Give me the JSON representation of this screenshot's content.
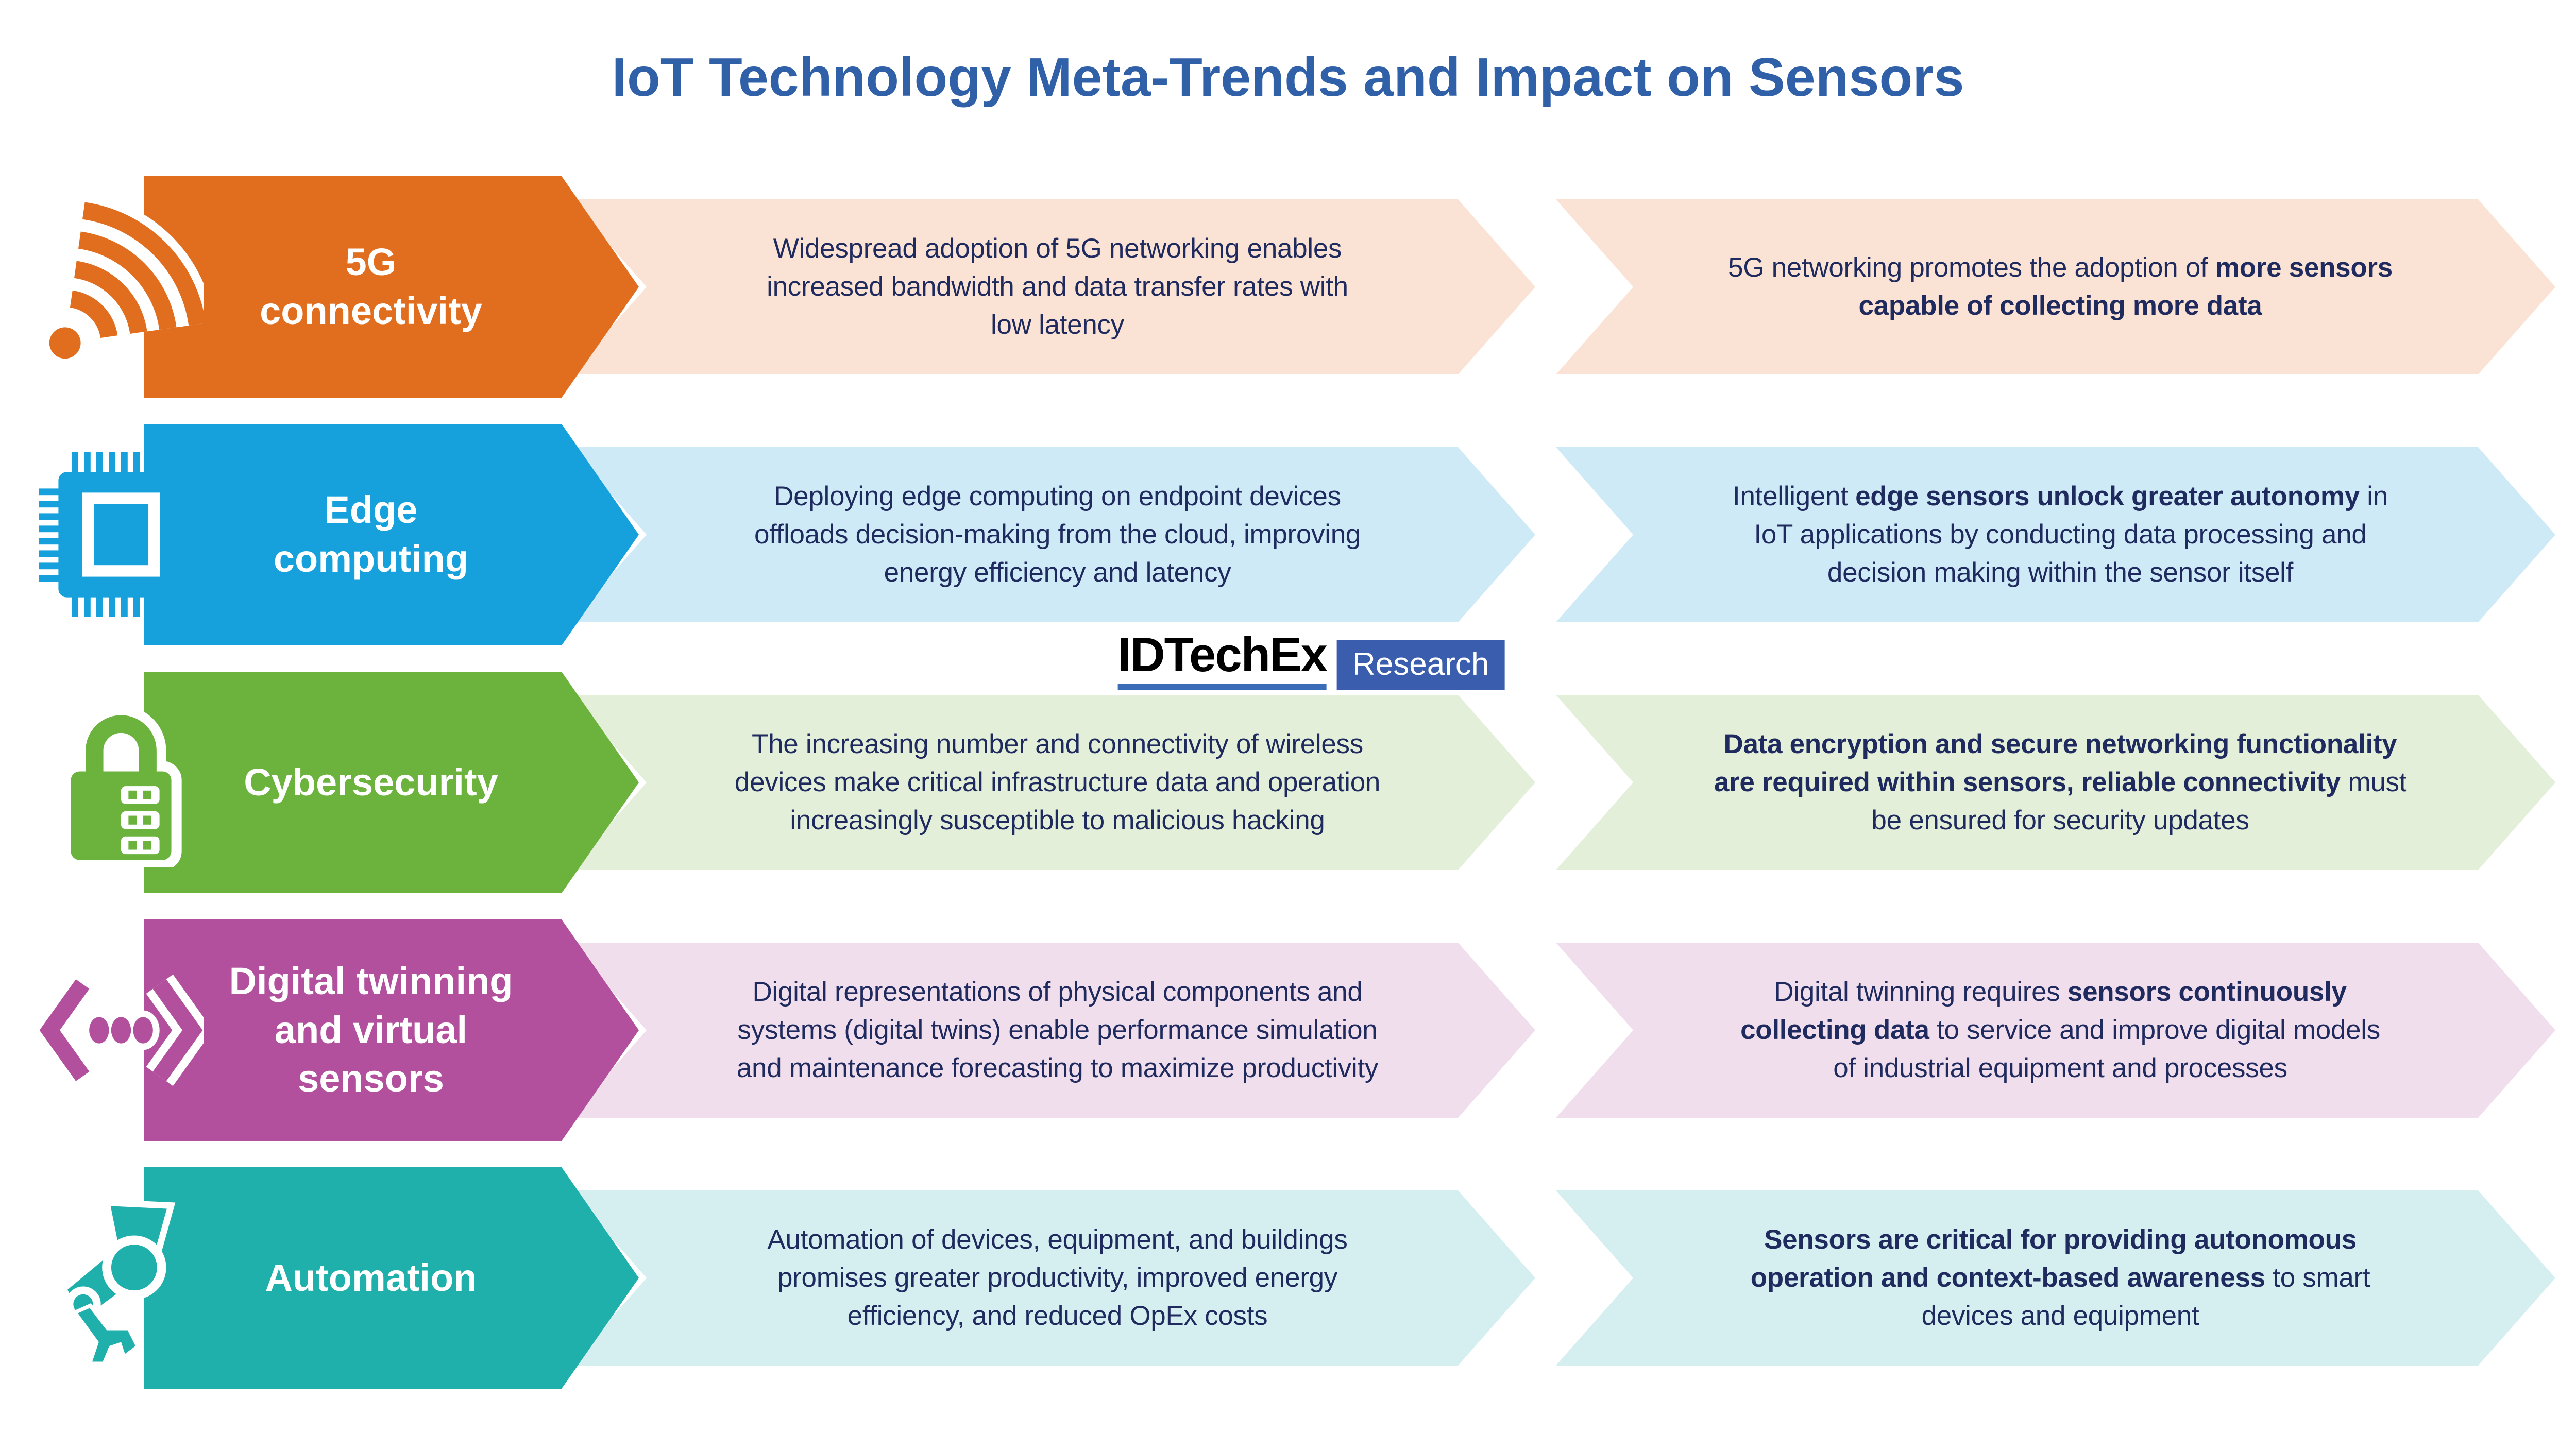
{
  "title": "IoT Technology Meta-Trends and Impact on Sensors",
  "logo": {
    "brand": "IDTechEx",
    "suffix": "Research"
  },
  "colors": {
    "title": "#3060A8",
    "text": "#1F2A5E",
    "logo_blue": "#3A5DAD",
    "logo_underline": "#3B6CB8"
  },
  "rows": [
    {
      "id": "5g-connectivity",
      "icon": "wifi-icon",
      "label": "5G\nconnectivity",
      "arrow_color": "#E06E1E",
      "light_color": "#FAE3D4",
      "trend_segments": [
        {
          "text": "Widespread adoption of 5G networking enables\nincreased bandwidth and data transfer rates with\nlow latency",
          "bold": false
        }
      ],
      "impact_segments": [
        {
          "text": "5G networking promotes the adoption of ",
          "bold": false
        },
        {
          "text": "more sensors\ncapable of collecting more data",
          "bold": true
        }
      ]
    },
    {
      "id": "edge-computing",
      "icon": "chip-icon",
      "label": "Edge\ncomputing",
      "arrow_color": "#16A1DC",
      "light_color": "#CFEAF7",
      "trend_segments": [
        {
          "text": "Deploying edge computing on endpoint devices\noffloads decision-making from the cloud, improving\nenergy efficiency and latency",
          "bold": false
        }
      ],
      "impact_segments": [
        {
          "text": "Intelligent ",
          "bold": false
        },
        {
          "text": "edge sensors unlock greater autonomy",
          "bold": true
        },
        {
          "text": " in\nIoT applications by conducting data processing and\ndecision making within the sensor itself",
          "bold": false
        }
      ]
    },
    {
      "id": "cybersecurity",
      "icon": "lock-icon",
      "label": "Cybersecurity",
      "arrow_color": "#6CB33E",
      "light_color": "#E3EFD9",
      "trend_segments": [
        {
          "text": "The increasing number and connectivity of wireless\ndevices make critical infrastructure data and operation\nincreasingly susceptible to malicious hacking",
          "bold": false
        }
      ],
      "impact_segments": [
        {
          "text": "Data encryption and secure networking functionality\nare required within sensors, reliable connectivity",
          "bold": true
        },
        {
          "text": " must\nbe ensured for security updates",
          "bold": false
        }
      ]
    },
    {
      "id": "digital-twinning",
      "icon": "digital-twin-icon",
      "label": "Digital twinning\nand virtual\nsensors",
      "arrow_color": "#B2509D",
      "light_color": "#F0DEEC",
      "trend_segments": [
        {
          "text": "Digital representations of physical components and\nsystems (digital twins) enable performance simulation\nand maintenance forecasting to maximize productivity",
          "bold": false
        }
      ],
      "impact_segments": [
        {
          "text": "Digital twinning requires ",
          "bold": false
        },
        {
          "text": "sensors continuously\ncollecting data",
          "bold": true
        },
        {
          "text": " to service and improve digital models\nof industrial equipment and processes",
          "bold": false
        }
      ]
    },
    {
      "id": "automation",
      "icon": "robot-arm-icon",
      "label": "Automation",
      "arrow_color": "#1FB0AC",
      "light_color": "#D5EEF0",
      "trend_segments": [
        {
          "text": "Automation of devices, equipment, and buildings\npromises greater productivity, improved energy\nefficiency, and reduced OpEx costs",
          "bold": false
        }
      ],
      "impact_segments": [
        {
          "text": "Sensors are critical for providing autonomous\noperation and context-based awareness",
          "bold": true
        },
        {
          "text": " to smart\ndevices and equipment",
          "bold": false
        }
      ]
    }
  ]
}
